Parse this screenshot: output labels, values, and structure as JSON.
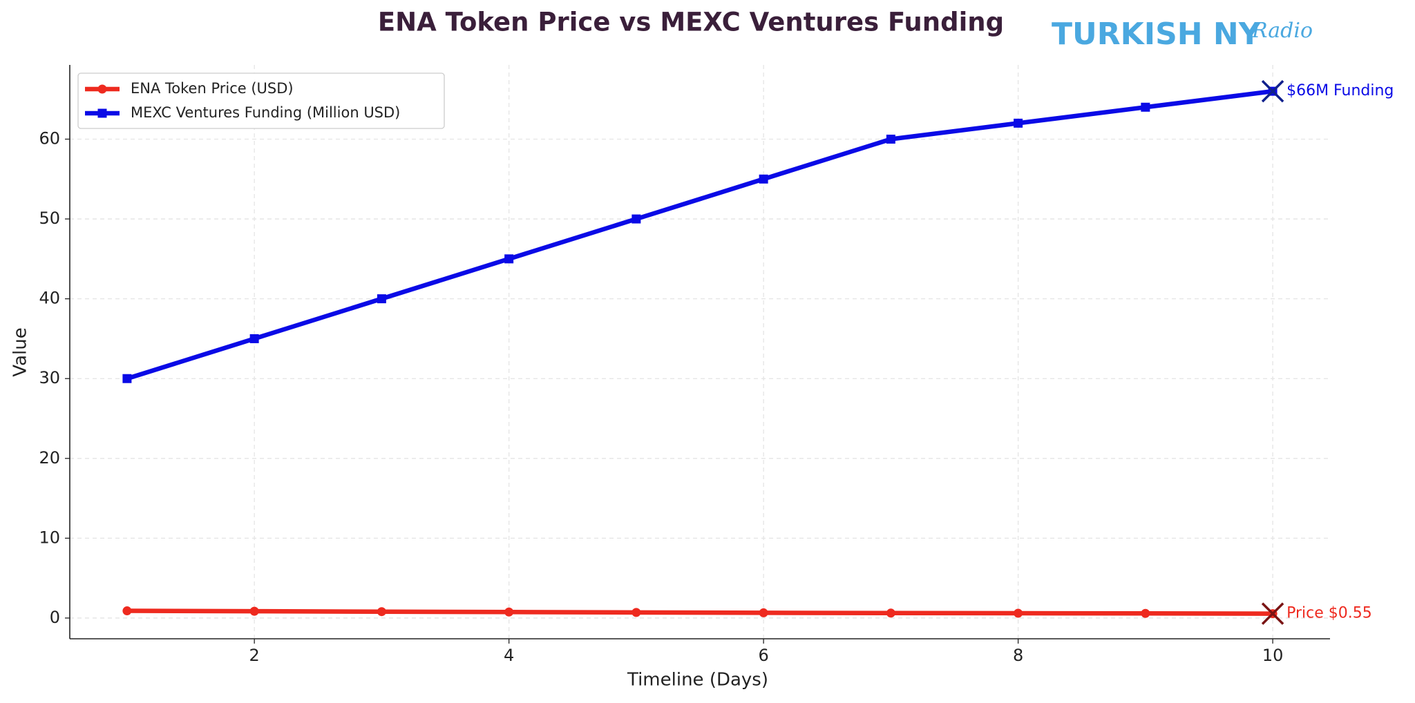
{
  "chart_data": {
    "type": "line",
    "title": "ENA Token Price vs MEXC Ventures Funding",
    "watermark": "TURKISH NY",
    "watermark_script": "Radio",
    "x_label": "Timeline (Days)",
    "y_label": "Value",
    "x": [
      1,
      2,
      3,
      4,
      5,
      6,
      7,
      8,
      9,
      10
    ],
    "series": [
      {
        "name": "ENA Token Price (USD)",
        "color": "#ee2a1f",
        "marker": "circle",
        "end_marker_color": "#7a1414",
        "values": [
          0.9,
          0.85,
          0.8,
          0.75,
          0.7,
          0.65,
          0.62,
          0.6,
          0.58,
          0.55
        ],
        "annotation": "Price $0.55"
      },
      {
        "name": "MEXC Ventures Funding (Million USD)",
        "color": "#0a0ae6",
        "marker": "square",
        "end_marker_color": "#10208c",
        "values": [
          30,
          35,
          40,
          45,
          50,
          55,
          60,
          62,
          64,
          66
        ],
        "annotation": "$66M Funding"
      }
    ],
    "xlim": [
      0.55,
      10.45
    ],
    "ylim": [
      -2.6,
      69.3
    ],
    "xticks": [
      2,
      4,
      6,
      8,
      10
    ],
    "yticks": [
      0,
      10,
      20,
      30,
      40,
      50,
      60
    ],
    "grid": true,
    "legend": "upper-left"
  }
}
